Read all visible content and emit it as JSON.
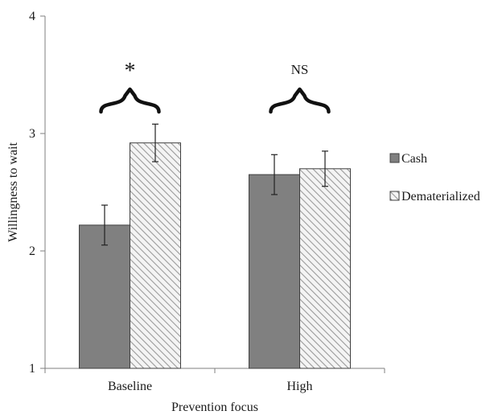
{
  "chart_data": {
    "type": "bar",
    "title": "",
    "xlabel": "Prevention focus",
    "ylabel": "Willingness to wait",
    "categories": [
      "Baseline",
      "High"
    ],
    "ylim": [
      1,
      4
    ],
    "yticks": [
      1,
      2,
      3,
      4
    ],
    "grid": false,
    "legend_position": "right",
    "series": [
      {
        "name": "Cash",
        "values": [
          2.22,
          2.65
        ],
        "error": [
          0.17,
          0.17
        ],
        "color": "#808080",
        "pattern": "solid"
      },
      {
        "name": "Dematerialized",
        "values": [
          2.92,
          2.7
        ],
        "error": [
          0.16,
          0.15
        ],
        "color": "#d9d9d9",
        "pattern": "diagonal-hatch"
      }
    ],
    "annotations": [
      {
        "category": "Baseline",
        "label": "*"
      },
      {
        "category": "High",
        "label": "NS"
      }
    ]
  }
}
